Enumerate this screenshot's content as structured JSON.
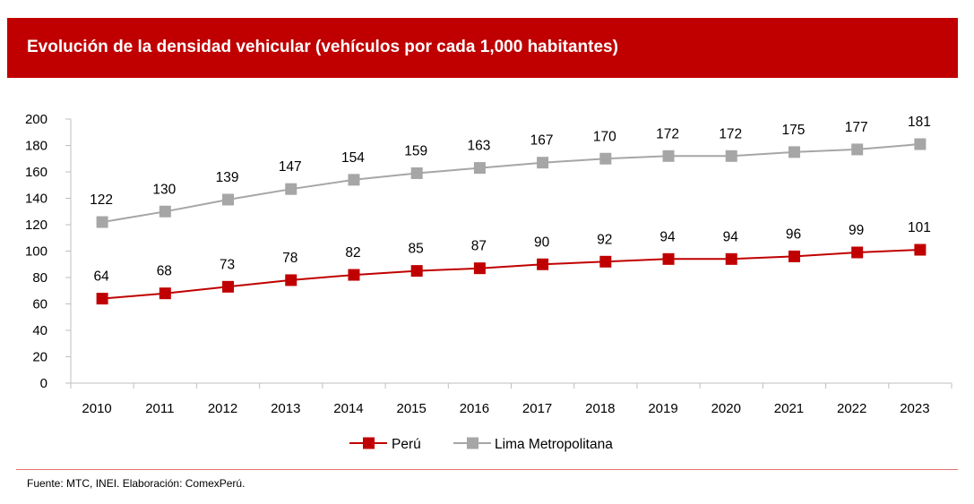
{
  "header": {
    "title": "Evolución de la densidad vehicular (vehículos por cada 1,000 habitantes)"
  },
  "colors": {
    "header_bg": "#C00000",
    "peru": "#C00000",
    "lima": "#A6A6A6",
    "axis": "#BFBFBF",
    "footer_line": "#E87070"
  },
  "chart_data": {
    "type": "line",
    "title": "Evolución de la densidad vehicular (vehículos por cada 1,000 habitantes)",
    "xlabel": "",
    "ylabel": "",
    "categories": [
      "2010",
      "2011",
      "2012",
      "2013",
      "2014",
      "2015",
      "2016",
      "2017",
      "2018",
      "2019",
      "2020",
      "2021",
      "2022",
      "2023"
    ],
    "ylim": [
      0,
      200
    ],
    "yticks": [
      0,
      20,
      40,
      60,
      80,
      100,
      120,
      140,
      160,
      180,
      200
    ],
    "grid": false,
    "legend_position": "bottom-center",
    "series": [
      {
        "name": "Perú",
        "color": "#C00000",
        "marker": "square",
        "values": [
          64,
          68,
          73,
          78,
          82,
          85,
          87,
          90,
          92,
          94,
          94,
          96,
          99,
          101
        ]
      },
      {
        "name": "Lima Metropolitana",
        "color": "#A6A6A6",
        "marker": "square",
        "values": [
          122,
          130,
          139,
          147,
          154,
          159,
          163,
          167,
          170,
          172,
          172,
          175,
          177,
          181
        ]
      }
    ]
  },
  "footer": {
    "source": "Fuente: MTC, INEI. Elaboración: ComexPerú."
  }
}
